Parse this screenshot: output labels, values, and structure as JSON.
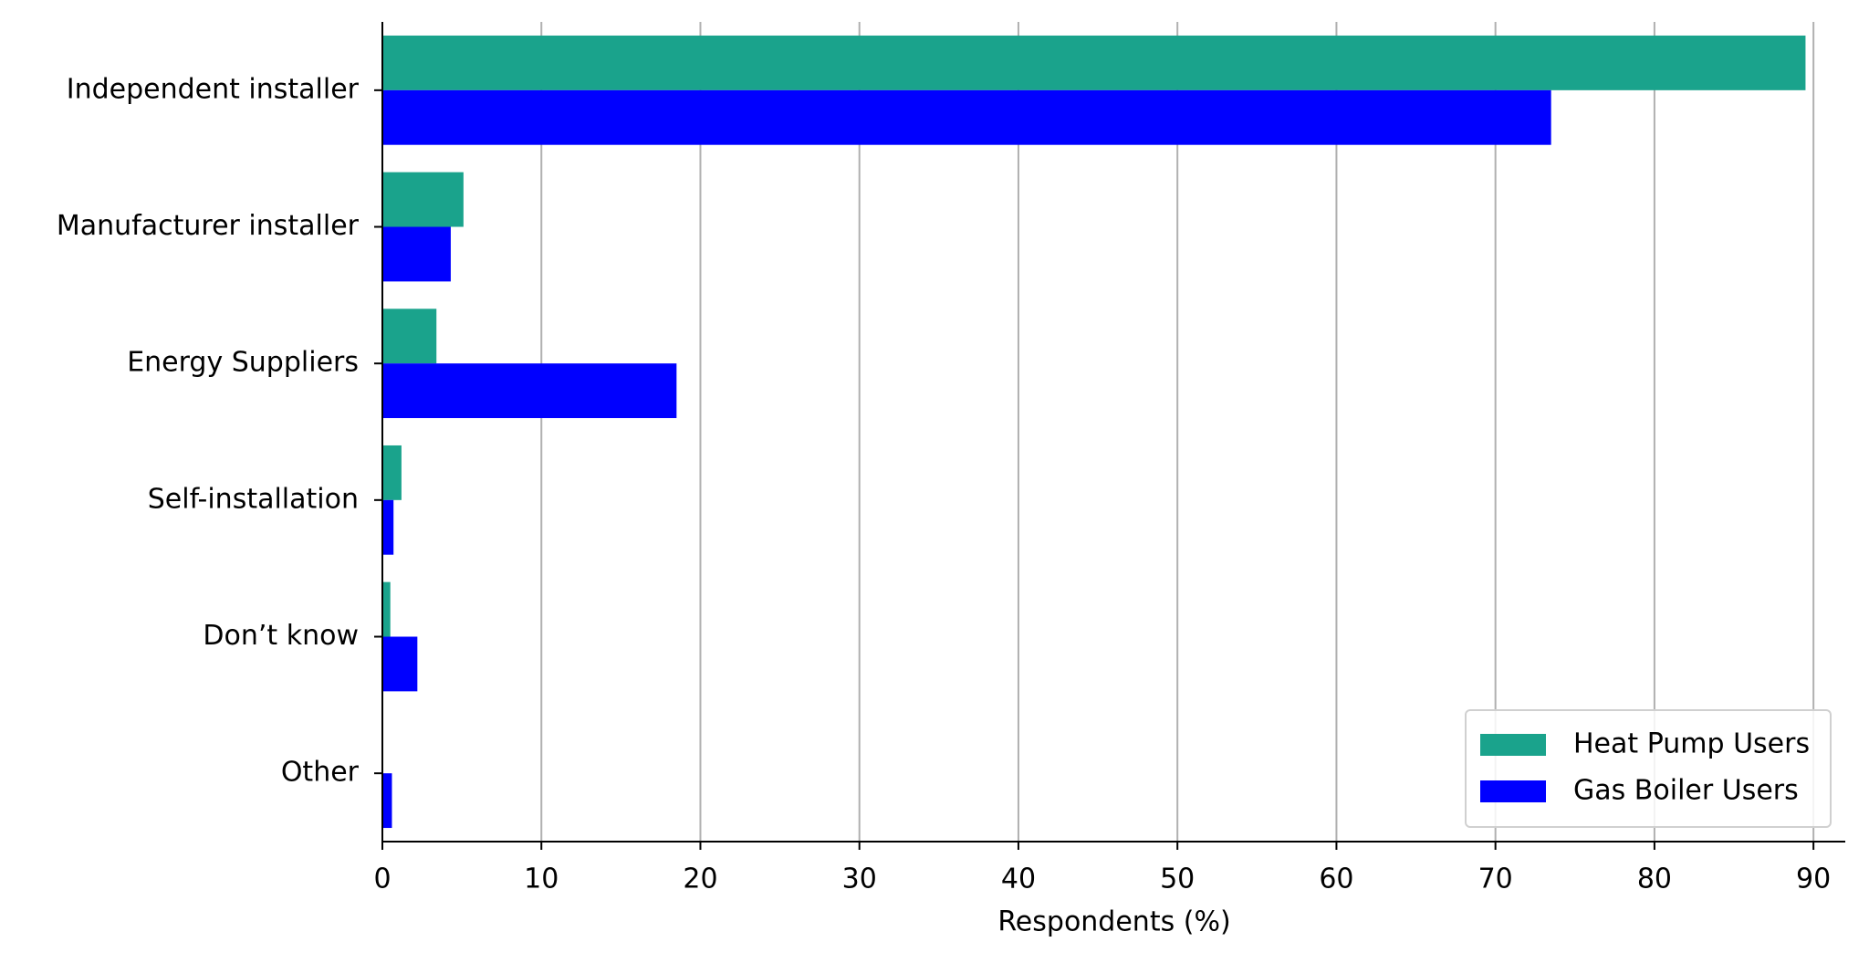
{
  "chart_data": {
    "type": "hbar",
    "xlabel": "Respondents (%)",
    "categories": [
      "Independent installer",
      "Manufacturer installer",
      "Energy Suppliers",
      "Self-installation",
      "Don’t know",
      "Other"
    ],
    "series": [
      {
        "name": "Heat Pump Users",
        "color": "#1aa38c",
        "values": [
          89.5,
          5.1,
          3.4,
          1.2,
          0.5,
          0
        ]
      },
      {
        "name": "Gas Boiler Users",
        "color": "#0000ff",
        "values": [
          73.5,
          4.3,
          18.5,
          0.7,
          2.2,
          0.6
        ]
      }
    ],
    "xlim": [
      0,
      92
    ],
    "xticks": [
      0,
      10,
      20,
      30,
      40,
      50,
      60,
      70,
      80,
      90
    ],
    "grid": true,
    "legend": "lower right"
  }
}
